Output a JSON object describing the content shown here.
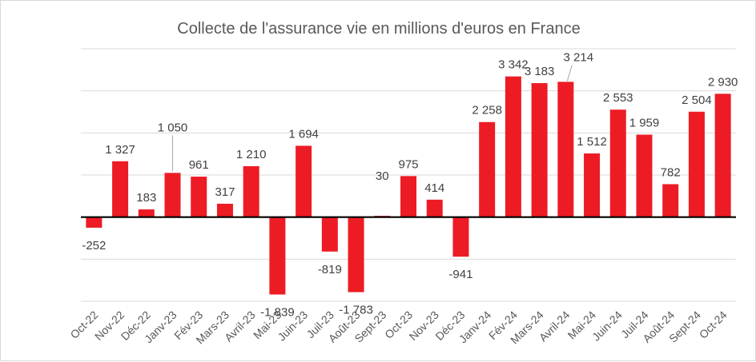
{
  "chart_data": {
    "type": "bar",
    "title": "Collecte de l'assurance vie en millions d'euros en France",
    "xlabel": "",
    "ylabel": "",
    "categories": [
      "Oct-22",
      "Nov-22",
      "Déc-22",
      "Janv-23",
      "Fév-23",
      "Mars-23",
      "Avril-23",
      "Mai-23",
      "Juin-23",
      "Juil-23",
      "Août-23",
      "Sept-23",
      "Oct-23",
      "Nov-23",
      "Déc-23",
      "Janv-24",
      "Fév-24",
      "Mars-24",
      "Avril-24",
      "Mai-24",
      "Juin-24",
      "Juil-24",
      "Août-24",
      "Sept-24",
      "Oct-24"
    ],
    "values": [
      -252,
      1327,
      183,
      1050,
      961,
      317,
      1210,
      -1839,
      1694,
      -819,
      -1783,
      30,
      975,
      414,
      -941,
      2258,
      3342,
      3183,
      3214,
      1512,
      2553,
      1959,
      782,
      2504,
      2930
    ],
    "data_labels": [
      "-252",
      "1 327",
      "183",
      "1 050",
      "961",
      "317",
      "1 210",
      "-1 839",
      "1 694",
      "-819",
      "-1 783",
      "30",
      "975",
      "414",
      "-941",
      "2 258",
      "3 342",
      "3 183",
      "3 214",
      "1 512",
      "2 553",
      "1 959",
      "782",
      "2 504",
      "2 930"
    ],
    "ylim": [
      -2000,
      4000
    ],
    "grid": true,
    "legend": "none",
    "bar_color": "#ed1c24",
    "axis_color": "#000000",
    "grid_color": "#d9d9d9"
  }
}
